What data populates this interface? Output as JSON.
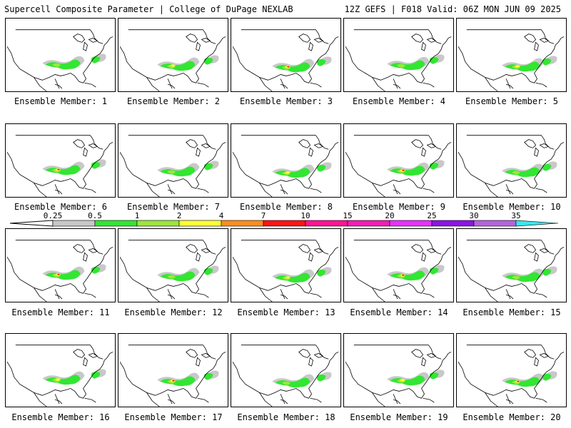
{
  "header": {
    "title": "Supercell Composite Parameter | College of DuPage NEXLAB",
    "valid": "12Z GEFS | F018 Valid: 06Z MON JUN 09 2025"
  },
  "panels": [
    {
      "label": "Ensemble Member: 1"
    },
    {
      "label": "Ensemble Member: 2"
    },
    {
      "label": "Ensemble Member: 3"
    },
    {
      "label": "Ensemble Member: 4"
    },
    {
      "label": "Ensemble Member: 5"
    },
    {
      "label": "Ensemble Member: 6"
    },
    {
      "label": "Ensemble Member: 7"
    },
    {
      "label": "Ensemble Member: 8"
    },
    {
      "label": "Ensemble Member: 9"
    },
    {
      "label": "Ensemble Member: 10"
    },
    {
      "label": "Ensemble Member: 11"
    },
    {
      "label": "Ensemble Member: 12"
    },
    {
      "label": "Ensemble Member: 13"
    },
    {
      "label": "Ensemble Member: 14"
    },
    {
      "label": "Ensemble Member: 15"
    },
    {
      "label": "Ensemble Member: 16"
    },
    {
      "label": "Ensemble Member: 17"
    },
    {
      "label": "Ensemble Member: 18"
    },
    {
      "label": "Ensemble Member: 19"
    },
    {
      "label": "Ensemble Member: 20"
    }
  ],
  "colorscale": {
    "labels": [
      "0.25",
      "0.5",
      "1",
      "2",
      "4",
      "7",
      "10",
      "15",
      "20",
      "25",
      "30",
      "35"
    ],
    "colors": [
      "#c8c8c8",
      "#32e632",
      "#9ee63c",
      "#ffff32",
      "#ff8c1e",
      "#ff1414",
      "#ff1493",
      "#f01eb4",
      "#e632ff",
      "#8c14e6",
      "#b464dc",
      "#3ce6f0"
    ]
  }
}
